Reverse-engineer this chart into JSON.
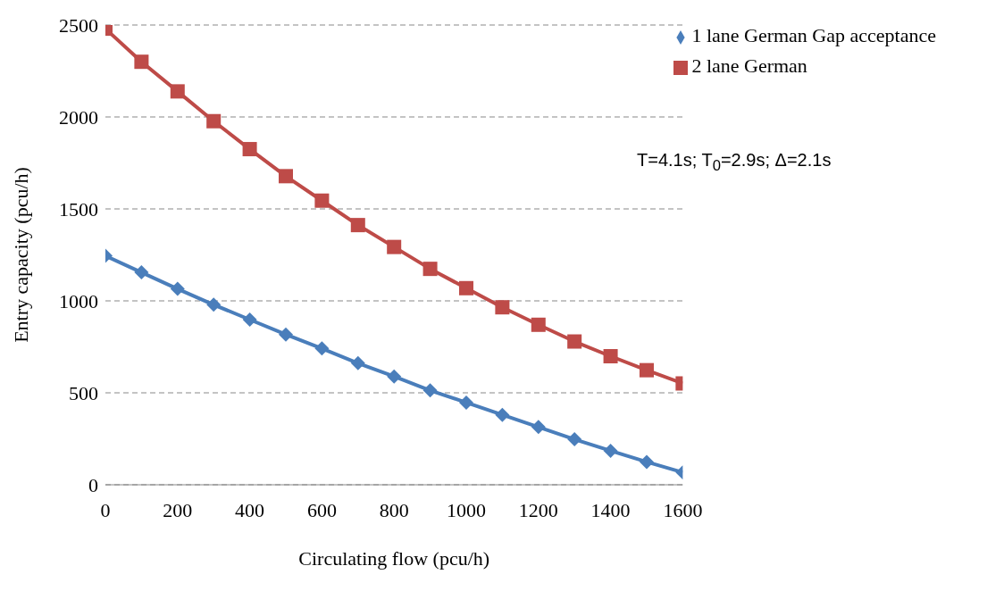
{
  "chart_data": {
    "type": "line",
    "xlabel": "Circulating flow (pcu/h)",
    "ylabel": "Entry capacity (pcu/h)",
    "x": [
      0,
      100,
      200,
      300,
      400,
      500,
      600,
      700,
      800,
      900,
      1000,
      1100,
      1200,
      1300,
      1400,
      1500,
      1600
    ],
    "series": [
      {
        "name": "1 lane German Gap acceptance",
        "color": "#4a7ebb",
        "marker": "diamond",
        "values": [
          1245,
          1155,
          1065,
          979,
          898,
          817,
          741,
          661,
          589,
          513,
          447,
          380,
          314,
          247,
          185,
          124,
          67
        ]
      },
      {
        "name": "2 lane German",
        "color": "#be4b48",
        "marker": "square",
        "values": [
          2480,
          2300,
          2139,
          1977,
          1825,
          1678,
          1545,
          1412,
          1293,
          1174,
          1069,
          965,
          870,
          779,
          699,
          623,
          551
        ]
      }
    ],
    "xlim": [
      0,
      1600
    ],
    "xticks": [
      0,
      200,
      400,
      600,
      800,
      1000,
      1200,
      1400,
      1600
    ],
    "ylim": [
      0,
      2500
    ],
    "yticks": [
      0,
      500,
      1000,
      1500,
      2000,
      2500
    ],
    "grid": "y",
    "line_style": "solid",
    "legend": "top right",
    "annotations": [
      "T=4.1s; T$_{0}$=2.9s; Δ=2.1s"
    ]
  }
}
